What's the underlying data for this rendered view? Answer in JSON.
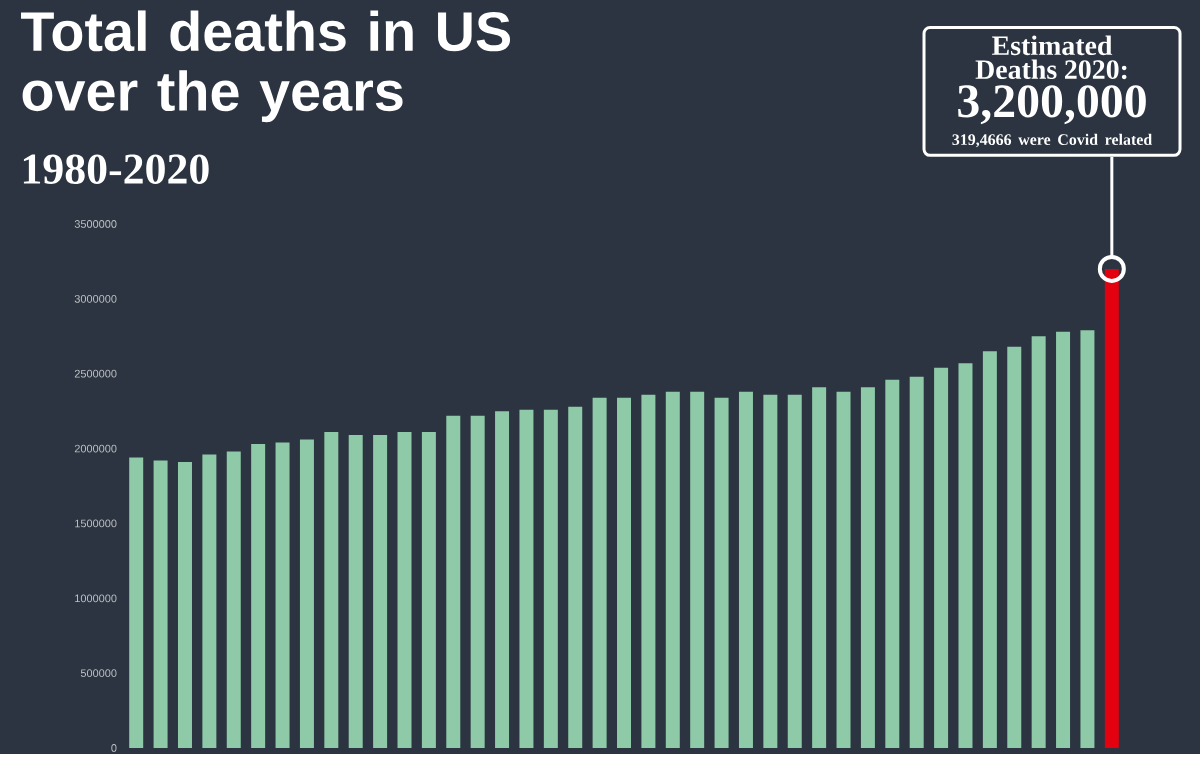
{
  "chart_data": {
    "type": "bar",
    "title": "Total deaths in US over the years",
    "subtitle": "1980-2020",
    "categories": [
      null,
      null,
      null,
      null,
      null,
      null,
      null,
      null,
      null,
      null,
      null,
      null,
      null,
      null,
      null,
      null,
      null,
      null,
      null,
      null,
      null,
      null,
      null,
      null,
      null,
      null,
      null,
      null,
      null,
      null,
      null,
      null,
      null,
      null,
      null,
      null,
      null,
      null,
      null,
      null,
      null
    ],
    "values": [
      1940000,
      1920000,
      1910000,
      1960000,
      1980000,
      2030000,
      2040000,
      2060000,
      2110000,
      2090000,
      2090000,
      2110000,
      2110000,
      2220000,
      2220000,
      2250000,
      2260000,
      2260000,
      2280000,
      2340000,
      2340000,
      2360000,
      2380000,
      2380000,
      2340000,
      2380000,
      2360000,
      2360000,
      2410000,
      2380000,
      2410000,
      2460000,
      2480000,
      2540000,
      2570000,
      2650000,
      2680000,
      2750000,
      2780000,
      2790000,
      3200000
    ],
    "colors": [
      "#8ec9a8",
      "#8ec9a8",
      "#8ec9a8",
      "#8ec9a8",
      "#8ec9a8",
      "#8ec9a8",
      "#8ec9a8",
      "#8ec9a8",
      "#8ec9a8",
      "#8ec9a8",
      "#8ec9a8",
      "#8ec9a8",
      "#8ec9a8",
      "#8ec9a8",
      "#8ec9a8",
      "#8ec9a8",
      "#8ec9a8",
      "#8ec9a8",
      "#8ec9a8",
      "#8ec9a8",
      "#8ec9a8",
      "#8ec9a8",
      "#8ec9a8",
      "#8ec9a8",
      "#8ec9a8",
      "#8ec9a8",
      "#8ec9a8",
      "#8ec9a8",
      "#8ec9a8",
      "#8ec9a8",
      "#8ec9a8",
      "#8ec9a8",
      "#8ec9a8",
      "#8ec9a8",
      "#8ec9a8",
      "#8ec9a8",
      "#8ec9a8",
      "#8ec9a8",
      "#8ec9a8",
      "#8ec9a8",
      "#e3000f"
    ],
    "ylim": [
      0,
      3500000
    ],
    "yticks": [
      0,
      500000,
      1000000,
      1500000,
      2000000,
      2500000,
      3000000,
      3500000
    ],
    "annotations": [
      "Estimated Deaths 2020:",
      "3,200,000",
      "319,4666 were Covid related"
    ]
  }
}
